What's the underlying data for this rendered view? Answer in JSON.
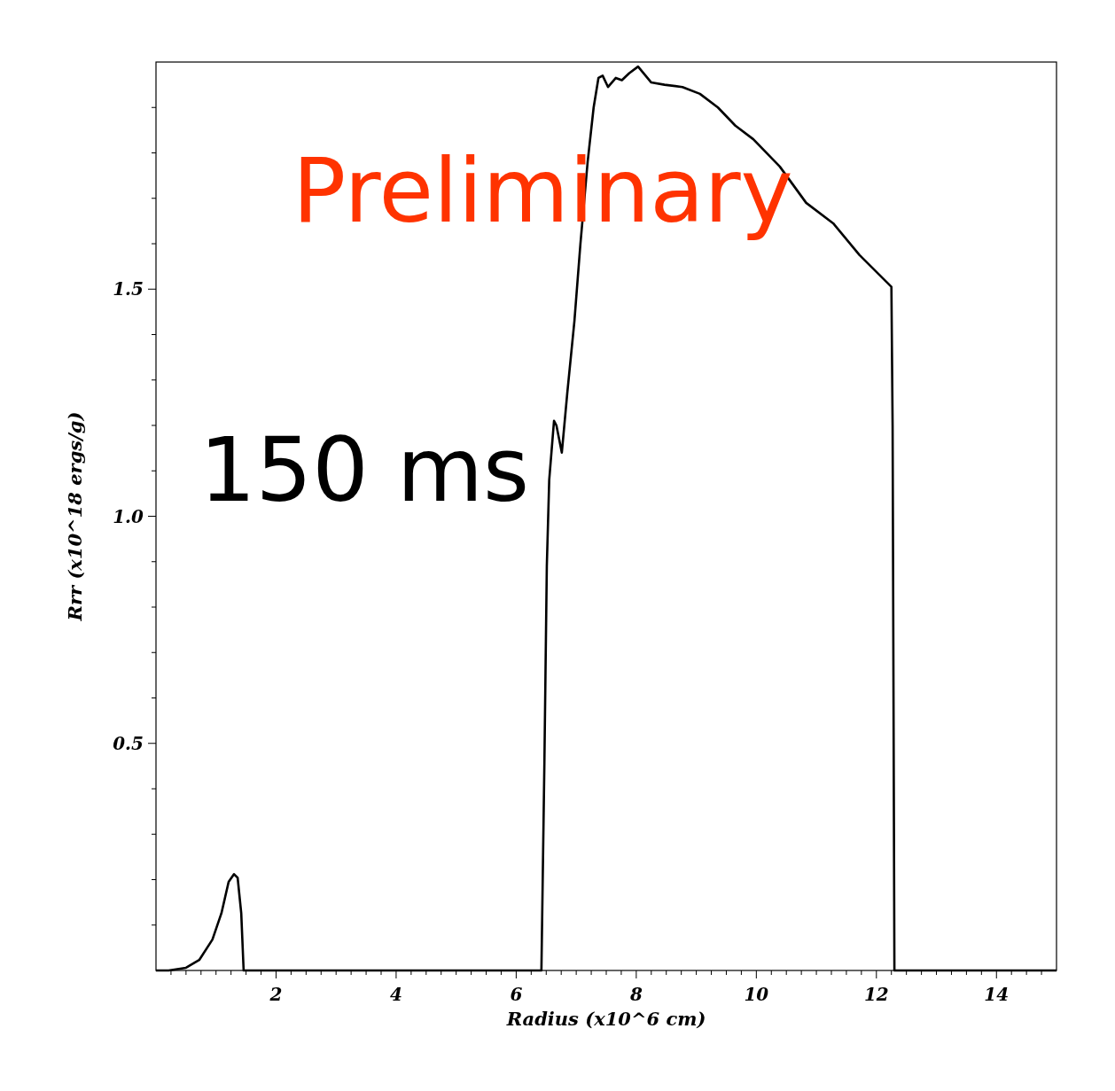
{
  "chart_data": {
    "type": "line",
    "xlabel": "Radius (x10^6 cm)",
    "ylabel": "Rrr (x10^18 ergs/g)",
    "annotations": [
      "Preliminary",
      "150 ms"
    ],
    "xlim": [
      0,
      15
    ],
    "ylim": [
      0,
      2
    ],
    "xticks": [
      {
        "value": 0.25,
        "label": null
      },
      {
        "value": 0.5,
        "label": null
      },
      {
        "value": 0.75,
        "label": null
      },
      {
        "value": 1,
        "label": null
      },
      {
        "value": 1.25,
        "label": null
      },
      {
        "value": 1.5,
        "label": null
      },
      {
        "value": 1.75,
        "label": null
      },
      2,
      {
        "value": 2.25,
        "label": null
      },
      {
        "value": 2.5,
        "label": null
      },
      {
        "value": 2.75,
        "label": null
      },
      {
        "value": 3,
        "label": null
      },
      {
        "value": 3.25,
        "label": null
      },
      {
        "value": 3.5,
        "label": null
      },
      {
        "value": 3.75,
        "label": null
      },
      4,
      {
        "value": 4.25,
        "label": null
      },
      {
        "value": 4.5,
        "label": null
      },
      {
        "value": 4.75,
        "label": null
      },
      {
        "value": 5,
        "label": null
      },
      {
        "value": 5.25,
        "label": null
      },
      {
        "value": 5.5,
        "label": null
      },
      {
        "value": 5.75,
        "label": null
      },
      6,
      {
        "value": 6.25,
        "label": null
      },
      {
        "value": 6.5,
        "label": null
      },
      {
        "value": 6.75,
        "label": null
      },
      {
        "value": 7,
        "label": null
      },
      {
        "value": 7.25,
        "label": null
      },
      {
        "value": 7.5,
        "label": null
      },
      {
        "value": 7.75,
        "label": null
      },
      8,
      {
        "value": 8.25,
        "label": null
      },
      {
        "value": 8.5,
        "label": null
      },
      {
        "value": 8.75,
        "label": null
      },
      {
        "value": 9,
        "label": null
      },
      {
        "value": 9.25,
        "label": null
      },
      {
        "value": 9.5,
        "label": null
      },
      {
        "value": 9.75,
        "label": null
      },
      10,
      {
        "value": 10.25,
        "label": null
      },
      {
        "value": 10.5,
        "label": null
      },
      {
        "value": 10.75,
        "label": null
      },
      {
        "value": 11,
        "label": null
      },
      {
        "value": 11.25,
        "label": null
      },
      {
        "value": 11.5,
        "label": null
      },
      {
        "value": 11.75,
        "label": null
      },
      12,
      {
        "value": 12.25,
        "label": null
      },
      {
        "value": 12.5,
        "label": null
      },
      {
        "value": 12.75,
        "label": null
      },
      {
        "value": 13,
        "label": null
      },
      {
        "value": 13.25,
        "label": null
      },
      {
        "value": 13.5,
        "label": null
      },
      {
        "value": 13.75,
        "label": null
      },
      14,
      {
        "value": 14.25,
        "label": null
      },
      {
        "value": 14.5,
        "label": null
      },
      {
        "value": 14.75,
        "label": null
      }
    ],
    "yticks": [
      {
        "value": 0.1,
        "label": null
      },
      {
        "value": 0.2,
        "label": null
      },
      {
        "value": 0.3,
        "label": null
      },
      {
        "value": 0.4,
        "label": null
      },
      0.5,
      {
        "value": 0.6,
        "label": null
      },
      {
        "value": 0.7,
        "label": null
      },
      {
        "value": 0.8,
        "label": null
      },
      {
        "value": 0.9,
        "label": null
      },
      {
        "value": 1,
        "label": "1.0"
      },
      {
        "value": 1.1,
        "label": null
      },
      {
        "value": 1.2,
        "label": null
      },
      {
        "value": 1.3,
        "label": null
      },
      {
        "value": 1.4,
        "label": null
      },
      1.5,
      {
        "value": 1.6,
        "label": null
      },
      {
        "value": 1.7,
        "label": null
      },
      {
        "value": 1.8,
        "label": null
      },
      {
        "value": 1.9,
        "label": null
      }
    ],
    "grid": false,
    "marker": "none",
    "line_style": "solid",
    "series": [
      {
        "color": "#000000",
        "x": [
          0,
          0.21,
          0.5,
          0.72,
          0.94,
          1.09,
          1.21,
          1.3,
          1.36,
          1.42,
          1.46,
          6.42,
          6.47,
          6.51,
          6.55,
          6.63,
          6.67,
          6.76,
          6.85,
          6.97,
          7.07,
          7.19,
          7.29,
          7.37,
          7.44,
          7.53,
          7.66,
          7.76,
          7.88,
          8.03,
          8.25,
          8.47,
          8.77,
          9.06,
          9.36,
          9.65,
          9.95,
          10.39,
          10.83,
          11.28,
          11.72,
          12.25,
          12.27,
          12.3,
          15
        ],
        "values": [
          0,
          0,
          0.006,
          0.023,
          0.068,
          0.126,
          0.195,
          0.212,
          0.204,
          0.126,
          0,
          0,
          0.46,
          0.89,
          1.08,
          1.21,
          1.2,
          1.14,
          1.27,
          1.43,
          1.6,
          1.78,
          1.9,
          1.965,
          1.97,
          1.945,
          1.965,
          1.96,
          1.975,
          1.99,
          1.955,
          1.95,
          1.945,
          1.93,
          1.9,
          1.86,
          1.83,
          1.77,
          1.69,
          1.645,
          1.575,
          1.505,
          1.2,
          0,
          0
        ]
      }
    ]
  }
}
